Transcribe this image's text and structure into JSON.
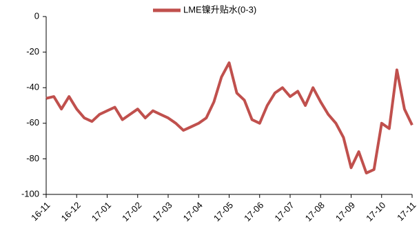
{
  "chart_data": {
    "type": "line",
    "categories": [
      "16-11",
      null,
      null,
      null,
      "16-12",
      null,
      null,
      null,
      "17-01",
      null,
      null,
      null,
      "17-02",
      null,
      null,
      null,
      "17-03",
      null,
      null,
      null,
      "17-04",
      null,
      null,
      null,
      "17-05",
      null,
      null,
      null,
      "17-06",
      null,
      null,
      null,
      "17-07",
      null,
      null,
      null,
      "17-08",
      null,
      null,
      null,
      "17-09",
      null,
      null,
      null,
      "17-10",
      null,
      null,
      null,
      "17-11"
    ],
    "series": [
      {
        "name": "LME镍升贴水(0-3)",
        "color": "#c0504d",
        "values": [
          -46,
          -45,
          -52,
          -45,
          -52,
          -57,
          -59,
          -55,
          -53,
          -51,
          -58,
          -55,
          -52,
          -57,
          -53,
          -55,
          -57,
          -60,
          -64,
          -62,
          -60,
          -57,
          -48,
          -34,
          -26,
          -43,
          -47,
          -58,
          -60,
          -50,
          -43,
          -40,
          -45,
          -42,
          -50,
          -40,
          -48,
          -55,
          -60,
          -68,
          -85,
          -76,
          -88,
          -86,
          -60,
          -63,
          -30,
          -52,
          -61
        ]
      }
    ],
    "ylim": [
      -100,
      0
    ],
    "yticks": [
      0,
      -20,
      -40,
      -60,
      -80,
      -100
    ],
    "legend": "top"
  }
}
